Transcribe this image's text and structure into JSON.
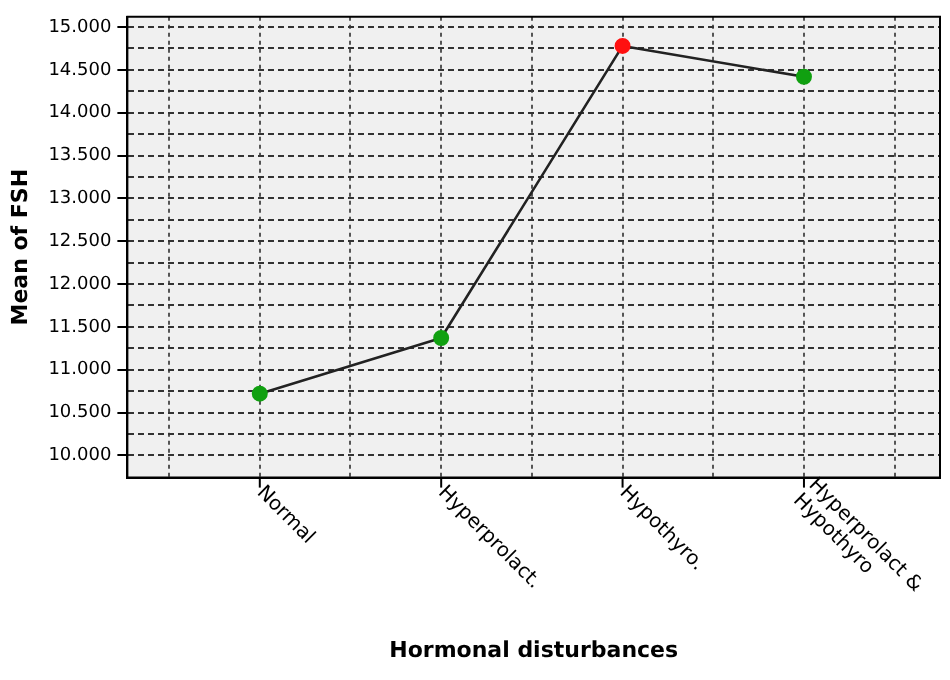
{
  "chart_data": {
    "type": "line",
    "xlabel": "Hormonal disturbances",
    "ylabel": "Mean of FSH",
    "categories": [
      "Normal",
      "Hyperprolact.",
      "Hypothyro.",
      "Hyperprolact & Hypothyro"
    ],
    "series": [
      {
        "color": "#222222",
        "colors": [
          "#10a010",
          "#10a010",
          "#ff1010",
          "#10a010"
        ],
        "values": [
          10.72,
          11.37,
          14.78,
          14.42
        ]
      }
    ],
    "ylim": [
      9.74,
      15.12
    ],
    "yticks": [
      {
        "value": 10,
        "label": "10.000"
      },
      {
        "value": 10.25,
        "label": null
      },
      {
        "value": 10.5,
        "label": "10.500"
      },
      {
        "value": 10.75,
        "label": null
      },
      {
        "value": 11,
        "label": "11.000"
      },
      {
        "value": 11.25,
        "label": null
      },
      {
        "value": 11.5,
        "label": "11.500"
      },
      {
        "value": 11.75,
        "label": null
      },
      {
        "value": 12,
        "label": "12.000"
      },
      {
        "value": 12.25,
        "label": null
      },
      {
        "value": 12.5,
        "label": "12.500"
      },
      {
        "value": 12.75,
        "label": null
      },
      {
        "value": 13,
        "label": "13.000"
      },
      {
        "value": 13.25,
        "label": null
      },
      {
        "value": 13.5,
        "label": "13.500"
      },
      {
        "value": 13.75,
        "label": null
      },
      {
        "value": 14,
        "label": "14.000"
      },
      {
        "value": 14.25,
        "label": null
      },
      {
        "value": 14.5,
        "label": "14.500"
      },
      {
        "value": 14.75,
        "label": null
      },
      {
        "value": 15,
        "label": "15.000"
      }
    ],
    "grid": true,
    "marker": "circle",
    "line_style": "solid"
  }
}
